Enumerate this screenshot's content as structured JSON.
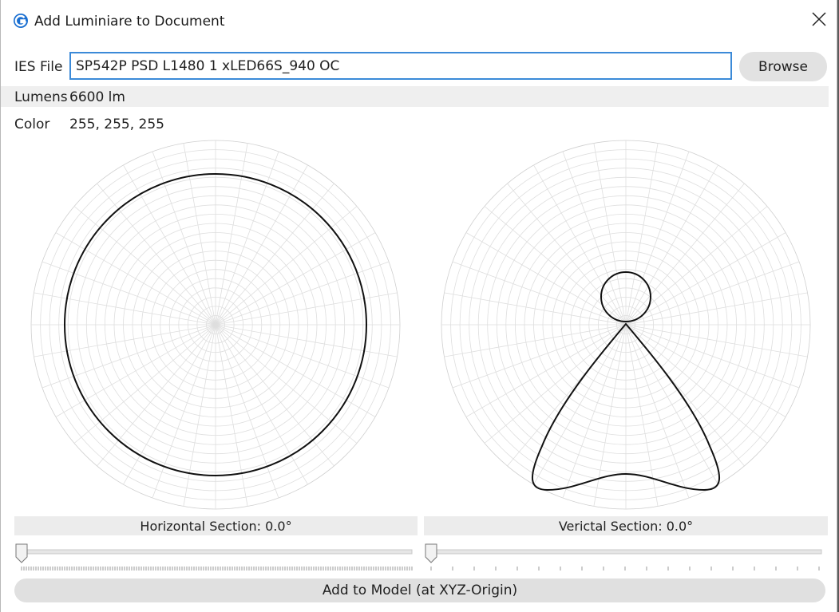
{
  "window": {
    "title": "Add Luminiare to Document",
    "icon": "app-logo-icon",
    "close_icon": "close-icon"
  },
  "form": {
    "ies_label": "IES File",
    "ies_value": "SP542P PSD L1480 1 xLED66S_940 OC",
    "browse_label": "Browse",
    "lumens_label": "Lumens",
    "lumens_value": "6600 lm",
    "color_label": "Color",
    "color_value": "255, 255, 255"
  },
  "sections": {
    "horizontal_label": "Horizontal Section: 0.0°",
    "vertical_label": "Verictal Section: 0.0°"
  },
  "sliders": {
    "horizontal_value": 0,
    "vertical_value": 0
  },
  "actions": {
    "add_label": "Add to Model (at XYZ-Origin)"
  },
  "colors": {
    "grid": "#d6d6d6",
    "curve": "#111111",
    "input_border": "#3b8ad8",
    "button_bg": "#e2e2e2"
  }
}
